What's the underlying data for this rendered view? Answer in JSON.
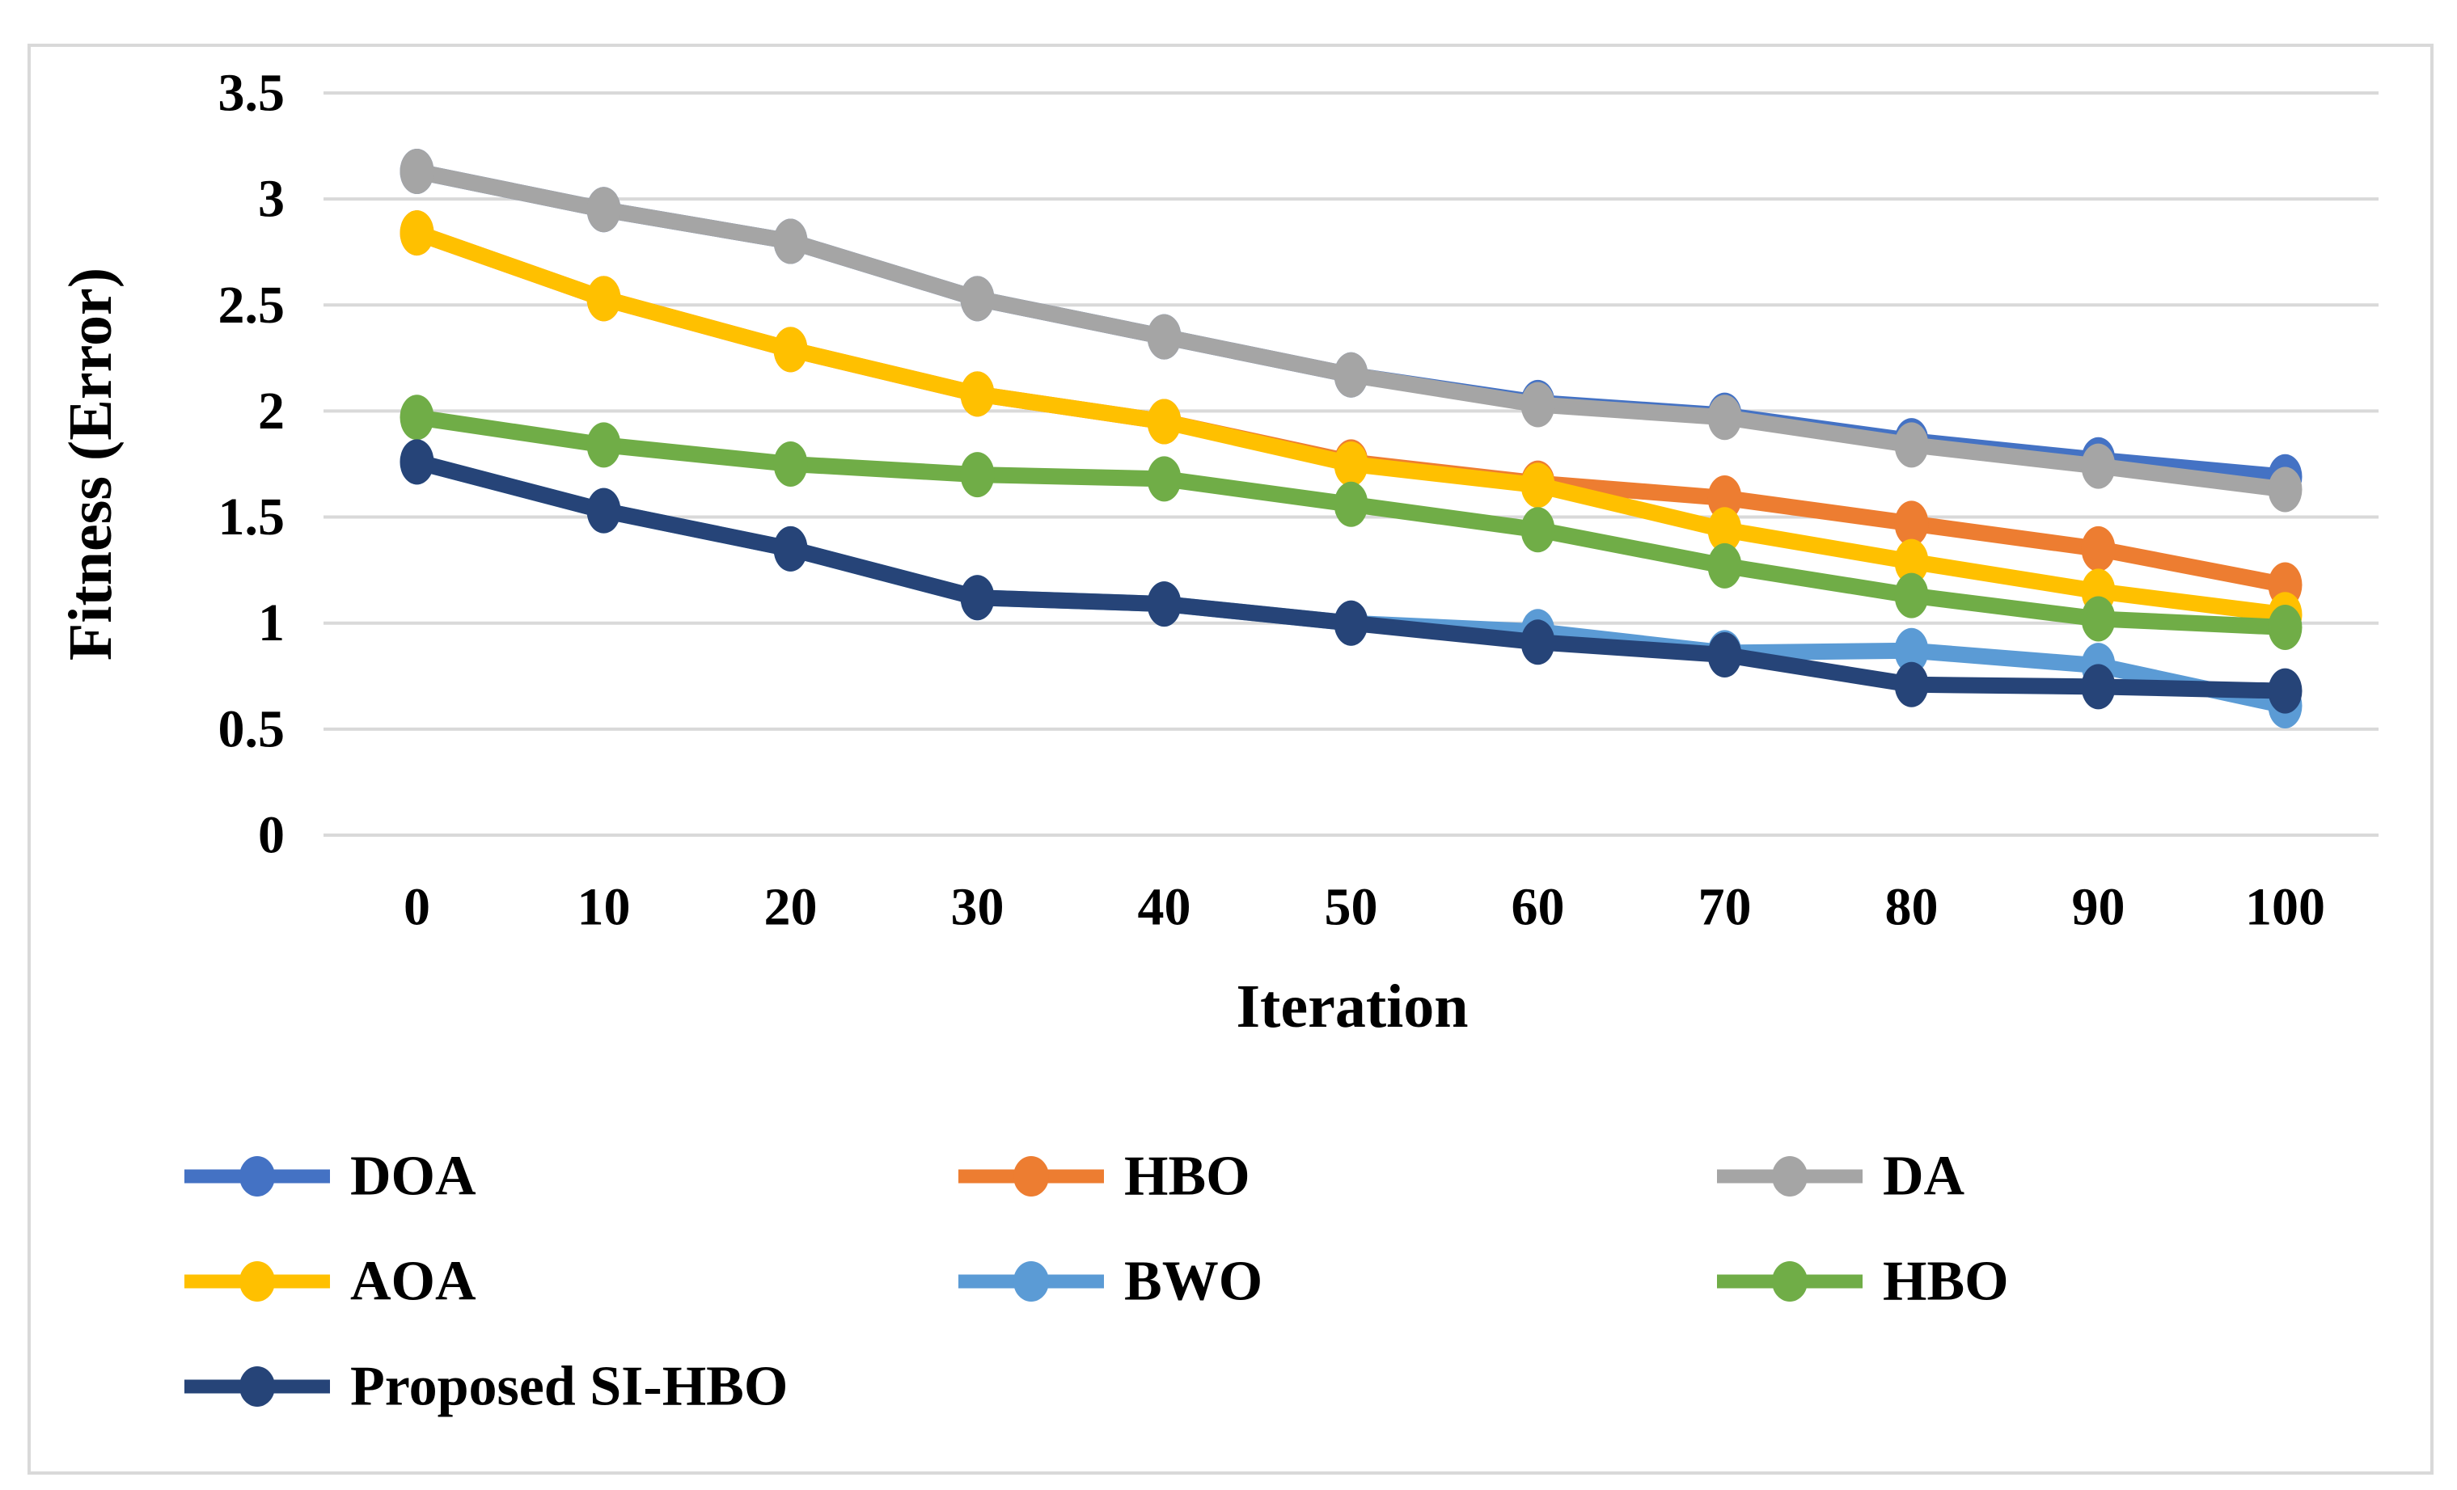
{
  "figure": {
    "background_color": "#FFFFFF",
    "border_color": "#D9D9D9",
    "gridline_color": "#D9D9D9"
  },
  "chart_data": {
    "type": "line",
    "title": "",
    "xlabel": "Iteration",
    "ylabel": "Fitness (Error)",
    "x": [
      0,
      10,
      20,
      30,
      40,
      50,
      60,
      70,
      80,
      90,
      100
    ],
    "x_tick_labels": [
      "0",
      "10",
      "20",
      "30",
      "40",
      "50",
      "60",
      "70",
      "80",
      "90",
      "100"
    ],
    "y_ticks": [
      0,
      0.5,
      1,
      1.5,
      2,
      2.5,
      3,
      3.5
    ],
    "y_tick_labels": [
      "0",
      "0.5",
      "1",
      "1.5",
      "2",
      "2.5",
      "3",
      "3.5"
    ],
    "ylim": [
      0,
      3.5
    ],
    "grid": "horizontal",
    "legend_position": "bottom",
    "series": [
      {
        "name": "DOA",
        "color": "#4472C4",
        "values": [
          3.13,
          2.95,
          2.8,
          2.53,
          2.35,
          2.17,
          2.04,
          1.98,
          1.86,
          1.77,
          1.69
        ]
      },
      {
        "name": "HBO",
        "color": "#ED7D31",
        "values": [
          2.84,
          2.53,
          2.29,
          2.08,
          1.95,
          1.76,
          1.66,
          1.59,
          1.47,
          1.35,
          1.18
        ]
      },
      {
        "name": "DA",
        "color": "#A5A5A5",
        "values": [
          3.13,
          2.95,
          2.8,
          2.53,
          2.35,
          2.17,
          2.03,
          1.97,
          1.84,
          1.74,
          1.63
        ]
      },
      {
        "name": "AOA",
        "color": "#FFC000",
        "values": [
          2.84,
          2.53,
          2.29,
          2.08,
          1.95,
          1.75,
          1.65,
          1.44,
          1.29,
          1.15,
          1.04
        ]
      },
      {
        "name": "BWO",
        "color": "#5B9BD5",
        "values": [
          1.76,
          1.53,
          1.35,
          1.12,
          1.09,
          1.0,
          0.96,
          0.86,
          0.87,
          0.8,
          0.61
        ]
      },
      {
        "name": "HBO",
        "color": "#70AD47",
        "values": [
          1.97,
          1.84,
          1.75,
          1.7,
          1.68,
          1.56,
          1.44,
          1.27,
          1.13,
          1.02,
          0.98
        ]
      },
      {
        "name": "Proposed SI-HBO",
        "color": "#264478",
        "values": [
          1.76,
          1.53,
          1.35,
          1.12,
          1.09,
          1.0,
          0.91,
          0.85,
          0.71,
          0.7,
          0.68
        ]
      }
    ],
    "legend_rows": [
      [
        0,
        1,
        2
      ],
      [
        3,
        4,
        5
      ],
      [
        6
      ]
    ]
  }
}
